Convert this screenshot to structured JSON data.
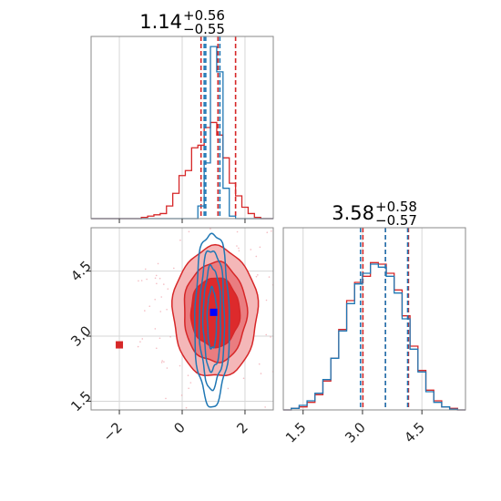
{
  "chart_data": [
    {
      "panel": "marginal-top-left",
      "type": "histogram",
      "title": {
        "median": "1.14",
        "plus": "+0.56",
        "minus": "−0.55"
      },
      "xlim": [
        -2.9,
        2.9
      ],
      "bin_edges": [
        -2.9,
        -2.7,
        -2.5,
        -2.3,
        -2.1,
        -1.9,
        -1.7,
        -1.5,
        -1.3,
        -1.1,
        -0.9,
        -0.7,
        -0.5,
        -0.3,
        -0.1,
        0.1,
        0.3,
        0.5,
        0.7,
        0.9,
        1.1,
        1.3,
        1.5,
        1.7,
        1.9,
        2.1,
        2.3,
        2.5,
        2.7,
        2.9
      ],
      "series": [
        {
          "color": "#d62728",
          "values": [
            0,
            0,
            0,
            0,
            0,
            0,
            0,
            0,
            0.005,
            0.01,
            0.015,
            0.02,
            0.05,
            0.1,
            0.17,
            0.19,
            0.28,
            0.29,
            0.36,
            0.38,
            0.33,
            0.24,
            0.14,
            0.09,
            0.045,
            0.02,
            0.005,
            0,
            0
          ],
          "quantiles": [
            0.6,
            1.14,
            1.7
          ]
        },
        {
          "color": "#1f77b4",
          "values": [
            0,
            0,
            0,
            0,
            0,
            0,
            0,
            0,
            0,
            0,
            0,
            0,
            0,
            0,
            0,
            0,
            0,
            0.05,
            0.22,
            0.68,
            0.58,
            0.12,
            0.01,
            0,
            0,
            0,
            0,
            0,
            0
          ],
          "quantiles": [
            0.7,
            0.75,
            1.2
          ]
        }
      ],
      "grid": true
    },
    {
      "panel": "marginal-bottom-right",
      "type": "histogram",
      "title": {
        "median": "3.58",
        "plus": "+0.58",
        "minus": "−0.57"
      },
      "xlim": [
        1.0,
        5.6
      ],
      "xticks": [
        "1.5",
        "3.0",
        "4.5"
      ],
      "tick_values": [
        1.5,
        3.0,
        4.5
      ],
      "bin_edges": [
        1.0,
        1.2,
        1.4,
        1.6,
        1.8,
        2.0,
        2.2,
        2.4,
        2.6,
        2.8,
        3.0,
        3.2,
        3.4,
        3.6,
        3.8,
        4.0,
        4.2,
        4.4,
        4.6,
        4.8,
        5.0,
        5.2,
        5.4,
        5.6
      ],
      "series": [
        {
          "color": "#d62728",
          "values": [
            0,
            0.01,
            0.02,
            0.05,
            0.1,
            0.19,
            0.34,
            0.53,
            0.72,
            0.84,
            0.88,
            0.97,
            0.96,
            0.9,
            0.79,
            0.62,
            0.42,
            0.26,
            0.13,
            0.06,
            0.02,
            0.01,
            0
          ],
          "quantiles": [
            3.01,
            3.58,
            4.16
          ]
        },
        {
          "color": "#1f77b4",
          "values": [
            0,
            0.01,
            0.03,
            0.06,
            0.11,
            0.2,
            0.34,
            0.52,
            0.7,
            0.83,
            0.9,
            0.96,
            0.94,
            0.88,
            0.77,
            0.6,
            0.4,
            0.25,
            0.12,
            0.05,
            0.02,
            0.005,
            0
          ],
          "quantiles": [
            2.95,
            3.58,
            4.14
          ]
        }
      ],
      "grid": true
    },
    {
      "panel": "joint-bottom-left",
      "type": "contour",
      "xlim": [
        -2.9,
        2.9
      ],
      "ylim": [
        1.3,
        5.5
      ],
      "xticks": [
        "−2",
        "0",
        "2"
      ],
      "xtick_values": [
        -2,
        0,
        2
      ],
      "yticks": [
        "1.5",
        "3.0",
        "4.5"
      ],
      "ytick_values": [
        1.5,
        3.0,
        4.5
      ],
      "series": [
        {
          "color": "#d62728",
          "fill_colors": [
            "#f4b7b8",
            "#ea7d80",
            "#dd2a2c"
          ],
          "center": [
            1.05,
            3.55
          ],
          "radii": [
            [
              1.35,
              1.5
            ],
            [
              1.0,
              1.15
            ],
            [
              0.78,
              0.8
            ]
          ],
          "marker": [
            -2.0,
            2.8
          ]
        },
        {
          "color": "#1f77b4",
          "center": [
            0.95,
            3.4
          ],
          "radii": [
            [
              0.55,
              2.0
            ],
            [
              0.4,
              1.6
            ],
            [
              0.28,
              1.2
            ],
            [
              0.15,
              0.7
            ]
          ],
          "marker": [
            1.0,
            3.55
          ]
        }
      ],
      "grid": true
    }
  ]
}
